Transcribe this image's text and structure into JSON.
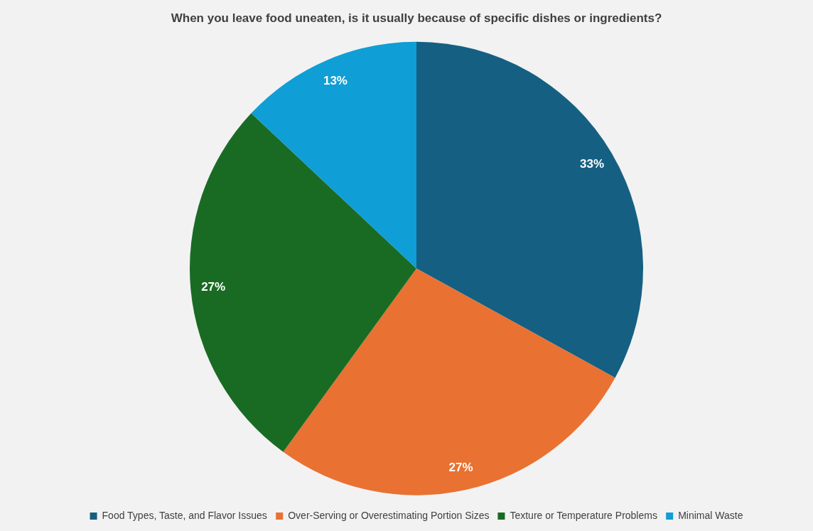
{
  "chart_data": {
    "type": "pie",
    "title": "When you leave food uneaten, is it usually because of specific dishes or ingredients?",
    "categories": [
      "Food Types, Taste, and Flavor Issues",
      "Over-Serving or Overestimating Portion Sizes",
      "Texture or Temperature Problems",
      "Minimal Waste"
    ],
    "values": [
      33,
      27,
      27,
      13
    ],
    "colors": [
      "#156082",
      "#e97132",
      "#196b24",
      "#0f9ed5"
    ],
    "value_labels": [
      "33%",
      "27%",
      "27%",
      "13%"
    ],
    "legend": "bottom"
  }
}
